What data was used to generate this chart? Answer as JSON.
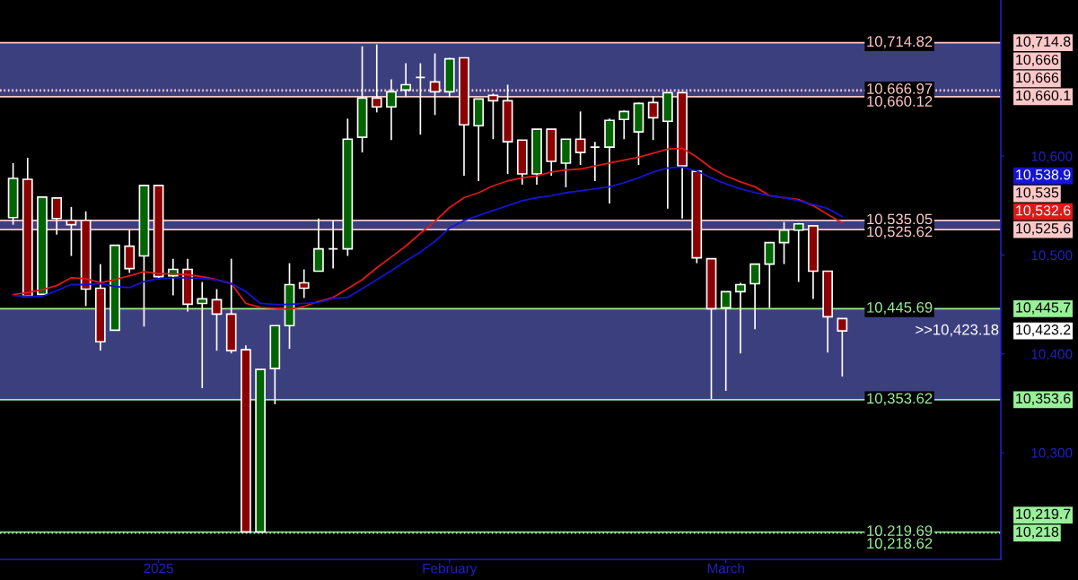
{
  "chart_data": {
    "type": "candlestick",
    "categories": [
      null,
      null,
      null,
      null,
      null,
      null,
      null,
      null,
      null,
      null,
      "2025",
      null,
      null,
      null,
      null,
      null,
      null,
      null,
      null,
      null,
      null,
      null,
      null,
      null,
      null,
      null,
      null,
      null,
      null,
      null,
      "February",
      null,
      null,
      null,
      null,
      null,
      null,
      null,
      null,
      null,
      null,
      null,
      null,
      null,
      null,
      null,
      null,
      null,
      null,
      "March",
      null,
      null,
      null,
      null,
      null,
      null,
      null,
      null
    ],
    "ohlc": [
      [
        10537.8,
        10592.9,
        10530.6,
        10577.5
      ],
      [
        10576.6,
        10598.3,
        10458.3,
        10458.3
      ],
      [
        10460.1,
        10558.5,
        10460.1,
        10558.5
      ],
      [
        10557.6,
        10557.6,
        10520.6,
        10536.9
      ],
      [
        10535.1,
        10548.6,
        10499.0,
        10530.6
      ],
      [
        10535.1,
        10544.1,
        10448.3,
        10465.5
      ],
      [
        10466.4,
        10490.8,
        10403.2,
        10412.2
      ],
      [
        10423.9,
        10509.8,
        10423.9,
        10509.8
      ],
      [
        10508.9,
        10525.1,
        10481.8,
        10486.3
      ],
      [
        10499.0,
        10570.3,
        10427.6,
        10570.3
      ],
      [
        10570.3,
        10570.3,
        10475.4,
        10478.1
      ],
      [
        10479.0,
        10496.2,
        10459.2,
        10485.4
      ],
      [
        10485.4,
        10496.2,
        10442.9,
        10450.1
      ],
      [
        10451.0,
        10472.7,
        10365.3,
        10455.6
      ],
      [
        10454.7,
        10465.5,
        10403.2,
        10440.2
      ],
      [
        10440.2,
        10496.2,
        10400.5,
        10403.2
      ],
      [
        10404.1,
        10408.6,
        10218.9,
        10219.8
      ],
      [
        10219.8,
        10384.2,
        10218.9,
        10384.2
      ],
      [
        10385.1,
        10428.5,
        10349.0,
        10428.5
      ],
      [
        10428.5,
        10491.7,
        10405.0,
        10470.0
      ],
      [
        10471.8,
        10485.4,
        10456.5,
        10466.4
      ],
      [
        10483.6,
        10536.9,
        10483.6,
        10506.2
      ],
      [
        10506.2,
        10535.1,
        10486.3,
        10506.2
      ],
      [
        10506.2,
        10638.0,
        10499.0,
        10617.2
      ],
      [
        10619.1,
        10711.2,
        10603.7,
        10658.8
      ],
      [
        10658.8,
        10713.0,
        10644.3,
        10649.8
      ],
      [
        10649.8,
        10677.8,
        10616.3,
        10665.1
      ],
      [
        10667.0,
        10694.0,
        10659.7,
        10672.3
      ],
      [
        10679.6,
        10694.0,
        10621.8,
        10679.6
      ],
      [
        10675.1,
        10704.0,
        10641.6,
        10665.1
      ],
      [
        10665.1,
        10699.5,
        10659.7,
        10698.5
      ],
      [
        10699.5,
        10699.5,
        10580.2,
        10631.7
      ],
      [
        10630.8,
        10657.9,
        10574.8,
        10657.9
      ],
      [
        10661.5,
        10663.3,
        10617.2,
        10656.1
      ],
      [
        10656.1,
        10672.3,
        10582.0,
        10614.5
      ],
      [
        10616.3,
        10616.3,
        10571.2,
        10582.0
      ],
      [
        10582.0,
        10627.2,
        10571.2,
        10627.2
      ],
      [
        10627.2,
        10627.2,
        10580.2,
        10594.7
      ],
      [
        10592.9,
        10617.2,
        10568.5,
        10617.2
      ],
      [
        10617.2,
        10645.2,
        10591.1,
        10603.7
      ],
      [
        10609.1,
        10614.5,
        10574.8,
        10609.1
      ],
      [
        10609.1,
        10638.0,
        10552.2,
        10636.2
      ],
      [
        10637.1,
        10646.2,
        10617.2,
        10645.2
      ],
      [
        10624.5,
        10654.3,
        10591.1,
        10653.4
      ],
      [
        10654.3,
        10660.6,
        10616.3,
        10638.9
      ],
      [
        10635.3,
        10664.2,
        10546.8,
        10664.2
      ],
      [
        10664.2,
        10664.2,
        10536.9,
        10590.2
      ],
      [
        10584.7,
        10584.7,
        10491.7,
        10497.1
      ],
      [
        10496.2,
        10496.2,
        10354.4,
        10445.6
      ],
      [
        10446.5,
        10462.8,
        10362.5,
        10462.8
      ],
      [
        10462.8,
        10471.8,
        10400.5,
        10470.0
      ],
      [
        10470.9,
        10490.8,
        10424.8,
        10490.8
      ],
      [
        10490.8,
        10512.5,
        10446.5,
        10512.5
      ],
      [
        10512.5,
        10533.3,
        10490.8,
        10525.1
      ],
      [
        10525.1,
        10532.4,
        10472.7,
        10531.5
      ],
      [
        10529.6,
        10529.6,
        10455.6,
        10483.6
      ],
      [
        10483.6,
        10483.6,
        10401.4,
        10437.5
      ],
      [
        10435.7,
        10435.7,
        10377.0,
        10423.18
      ]
    ],
    "series": [
      {
        "type": "line",
        "color": "#e01818",
        "values": [
          10460,
          10462,
          10465,
          10469,
          10477,
          10476,
          10472,
          10475,
          10479,
          10483,
          10481,
          10481,
          10480,
          10478,
          10475,
          10471,
          10451,
          10447,
          10446,
          10445,
          10448,
          10453,
          10457,
          10466,
          10475,
          10487,
          10498,
          10509,
          10522,
          10534,
          10548,
          10558,
          10563,
          10570,
          10575,
          10578,
          10580,
          10584,
          10586,
          10587,
          10590,
          10593,
          10596,
          10599,
          10603,
          10607,
          10608,
          10599,
          10588,
          10580,
          10574,
          10569,
          10560,
          10558,
          10556,
          10550,
          10541,
          10532.6
        ]
      },
      {
        "type": "line",
        "color": "#1414d2",
        "values": [
          10459,
          10458,
          10458,
          10464,
          10470,
          10470,
          10471,
          10468,
          10467,
          10473,
          10476,
          10477,
          10477,
          10476,
          10475,
          10471,
          10463,
          10451,
          10450,
          10450,
          10451,
          10452,
          10456,
          10457,
          10466,
          10475,
          10484,
          10494,
          10503,
          10514,
          10527,
          10535,
          10540,
          10545,
          10550,
          10555,
          10558,
          10560,
          10563,
          10565,
          10567,
          10569,
          10573,
          10578,
          10584,
          10588,
          10589,
          10585,
          10578,
          10572,
          10567,
          10563,
          10560,
          10558,
          10555,
          10551,
          10547,
          10538.9
        ]
      }
    ],
    "ylim": [
      10192,
      10758
    ],
    "yticks": [
      {
        "value": 10300,
        "label": "10,300"
      },
      {
        "value": 10400,
        "label": "10,400"
      },
      {
        "value": 10500,
        "label": "10,500"
      },
      {
        "value": 10600,
        "label": "10,600"
      }
    ],
    "bands": [
      {
        "axis": "y",
        "from": 10660.12,
        "to": 10714.82,
        "color": "#3c3f7e"
      },
      {
        "axis": "y",
        "from": 10525.62,
        "to": 10535.05,
        "color": "#3c3f7e"
      },
      {
        "axis": "y",
        "from": 10353.62,
        "to": 10445.69,
        "color": "#3c3f7e"
      }
    ],
    "ref_lines": [
      {
        "axis": "y",
        "value": 10714.82,
        "label": "10,714.82",
        "color": "#ffc8c8",
        "line_style": "solid"
      },
      {
        "axis": "y",
        "value": 10666.97,
        "label": "10,666.97",
        "color": "#ffc8c8",
        "line_style": "dotted"
      },
      {
        "axis": "y",
        "value": 10666,
        "color": "#ffc8c8",
        "line_style": "dotted"
      },
      {
        "axis": "y",
        "value": 10660.12,
        "label": "10,660.12",
        "color": "#ffc8c8",
        "line_style": "solid"
      },
      {
        "axis": "y",
        "value": 10535.05,
        "label": "10,535.05",
        "color": "#ffc8c8",
        "line_style": "solid"
      },
      {
        "axis": "y",
        "value": 10525.62,
        "label": "10,525.62",
        "color": "#ffc8c8",
        "line_style": "solid"
      },
      {
        "axis": "y",
        "value": 10445.69,
        "label": "10,445.69",
        "color": "#98f098",
        "line_style": "solid"
      },
      {
        "axis": "y",
        "value": 10353.62,
        "label": "10,353.62",
        "color": "#98f098",
        "line_style": "solid"
      },
      {
        "axis": "y",
        "value": 10219.69,
        "label": "10,219.69",
        "color": "#98f098",
        "line_style": "solid"
      },
      {
        "axis": "y",
        "value": 10218.62,
        "label": "10,218.62",
        "color": "#98f098",
        "line_style": "dotted"
      }
    ],
    "annotations": [
      ">>10,423.18",
      "10,714.8",
      "10,666",
      "10,666",
      "10,660.1",
      "10,538.9",
      "10,535",
      "10,532.6",
      "10,525.6",
      "10,445.7",
      "10,423.2",
      "10,353.6",
      "10,219.7",
      "10,218"
    ],
    "grid": false,
    "legend": false
  }
}
